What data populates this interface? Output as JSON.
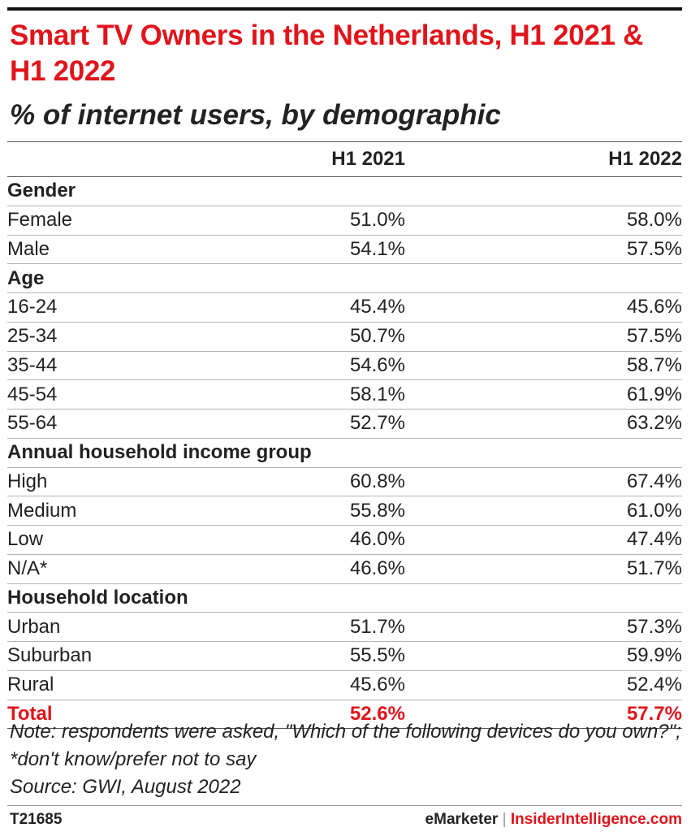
{
  "title": "Smart TV Owners in the Netherlands, H1 2021 & H1 2022",
  "subtitle": "% of internet users, by demographic",
  "chart_data": {
    "type": "table",
    "columns": [
      "",
      "H1 2021",
      "H1 2022"
    ],
    "rows": [
      {
        "kind": "group",
        "label": "Gender"
      },
      {
        "kind": "row",
        "label": "Female",
        "values": [
          "51.0%",
          "58.0%"
        ]
      },
      {
        "kind": "row",
        "label": "Male",
        "values": [
          "54.1%",
          "57.5%"
        ]
      },
      {
        "kind": "group",
        "label": "Age"
      },
      {
        "kind": "row",
        "label": "16-24",
        "values": [
          "45.4%",
          "45.6%"
        ]
      },
      {
        "kind": "row",
        "label": "25-34",
        "values": [
          "50.7%",
          "57.5%"
        ]
      },
      {
        "kind": "row",
        "label": "35-44",
        "values": [
          "54.6%",
          "58.7%"
        ]
      },
      {
        "kind": "row",
        "label": "45-54",
        "values": [
          "58.1%",
          "61.9%"
        ]
      },
      {
        "kind": "row",
        "label": "55-64",
        "values": [
          "52.7%",
          "63.2%"
        ]
      },
      {
        "kind": "group",
        "label": "Annual household income group"
      },
      {
        "kind": "row",
        "label": "High",
        "values": [
          "60.8%",
          "67.4%"
        ]
      },
      {
        "kind": "row",
        "label": "Medium",
        "values": [
          "55.8%",
          "61.0%"
        ]
      },
      {
        "kind": "row",
        "label": "Low",
        "values": [
          "46.0%",
          "47.4%"
        ]
      },
      {
        "kind": "row",
        "label": "N/A*",
        "values": [
          "46.6%",
          "51.7%"
        ]
      },
      {
        "kind": "group",
        "label": "Household location"
      },
      {
        "kind": "row",
        "label": "Urban",
        "values": [
          "51.7%",
          "57.3%"
        ]
      },
      {
        "kind": "row",
        "label": "Suburban",
        "values": [
          "55.5%",
          "59.9%"
        ]
      },
      {
        "kind": "row",
        "label": "Rural",
        "values": [
          "45.6%",
          "52.4%"
        ]
      },
      {
        "kind": "total",
        "label": "Total",
        "values": [
          "52.6%",
          "57.7%"
        ]
      }
    ]
  },
  "note": "Note: respondents were asked, \"Which of the following devices do you own?\"; *don't know/prefer not to say",
  "source": "Source: GWI, August 2022",
  "footer": {
    "code": "T21685",
    "brand_left": "eMarketer",
    "separator": "|",
    "brand_right": "InsiderIntelligence.com"
  },
  "colors": {
    "accent": "#e1141b",
    "text": "#222222"
  }
}
